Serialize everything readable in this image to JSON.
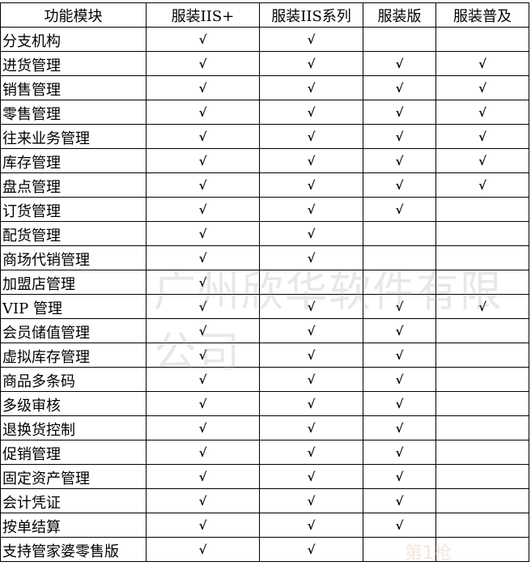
{
  "headers": [
    "功能模块",
    "服装IIS+",
    "服装IIS系列",
    "服装版",
    "服装普及"
  ],
  "check_mark": "√",
  "rows": [
    {
      "name": "分支机构",
      "checks": [
        true,
        true,
        false,
        false
      ]
    },
    {
      "name": "进货管理",
      "checks": [
        true,
        true,
        true,
        true
      ]
    },
    {
      "name": "销售管理",
      "checks": [
        true,
        true,
        true,
        true
      ]
    },
    {
      "name": "零售管理",
      "checks": [
        true,
        true,
        true,
        true
      ]
    },
    {
      "name": "往来业务管理",
      "checks": [
        true,
        true,
        true,
        true
      ]
    },
    {
      "name": "库存管理",
      "checks": [
        true,
        true,
        true,
        true
      ]
    },
    {
      "name": "盘点管理",
      "checks": [
        true,
        true,
        true,
        true
      ]
    },
    {
      "name": "订货管理",
      "checks": [
        true,
        true,
        true,
        false
      ]
    },
    {
      "name": "配货管理",
      "checks": [
        true,
        true,
        false,
        false
      ]
    },
    {
      "name": "商场代销管理",
      "checks": [
        true,
        true,
        false,
        false
      ]
    },
    {
      "name": "加盟店管理",
      "checks": [
        true,
        false,
        false,
        false
      ]
    },
    {
      "name": "VIP 管理",
      "checks": [
        true,
        true,
        true,
        true
      ]
    },
    {
      "name": "会员储值管理",
      "checks": [
        true,
        true,
        true,
        false
      ]
    },
    {
      "name": "虚拟库存管理",
      "checks": [
        true,
        true,
        true,
        false
      ]
    },
    {
      "name": "商品多条码",
      "checks": [
        true,
        true,
        true,
        false
      ]
    },
    {
      "name": "多级审核",
      "checks": [
        true,
        true,
        true,
        false
      ]
    },
    {
      "name": "退换货控制",
      "checks": [
        true,
        true,
        true,
        false
      ]
    },
    {
      "name": "促销管理",
      "checks": [
        true,
        true,
        true,
        false
      ]
    },
    {
      "name": "固定资产管理",
      "checks": [
        true,
        true,
        true,
        false
      ]
    },
    {
      "name": "会计凭证",
      "checks": [
        true,
        true,
        true,
        false
      ]
    },
    {
      "name": "按单结算",
      "checks": [
        true,
        true,
        true,
        false
      ]
    },
    {
      "name": "支持管家婆零售版",
      "checks": [
        true,
        true,
        false,
        false
      ]
    }
  ],
  "watermark": "广州欣华软件有限公司",
  "logo_watermark": "第1枪"
}
